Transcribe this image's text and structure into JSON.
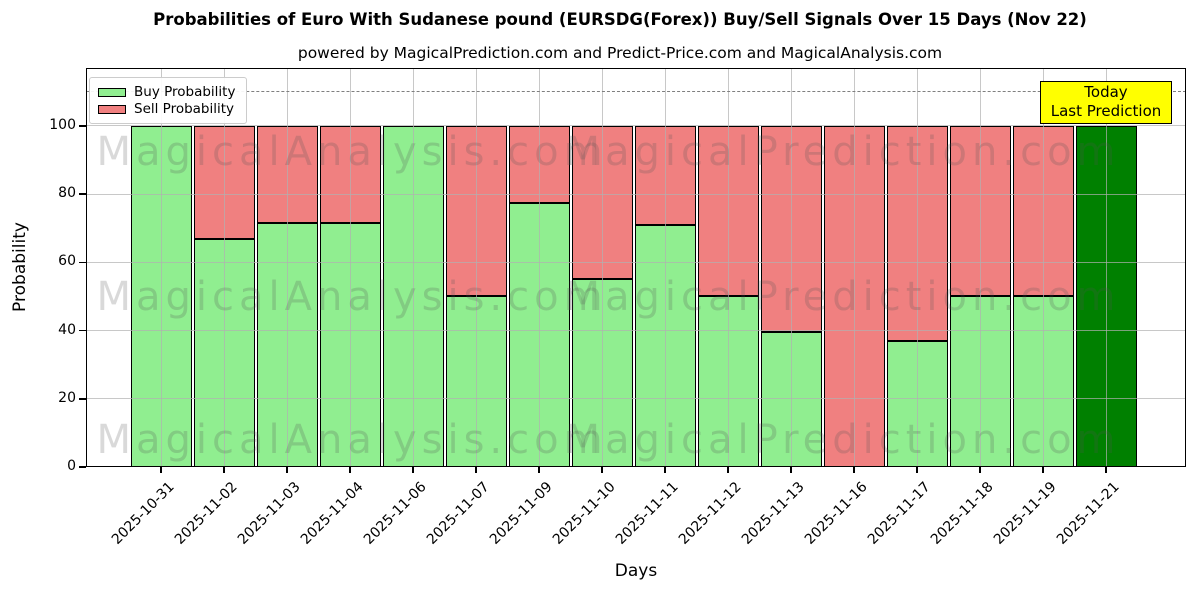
{
  "title": "Probabilities of Euro With Sudanese pound (EURSDG(Forex)) Buy/Sell Signals Over 15 Days (Nov 22)",
  "subtitle": "powered by MagicalPrediction.com and Predict-Price.com and MagicalAnalysis.com",
  "annotation": {
    "line1": "Today",
    "line2": "Last Prediction",
    "bg_color": "#ffff00"
  },
  "watermarks": {
    "left": "MagicalAnalysis.com",
    "right": "MagicalPrediction.com"
  },
  "chart_data": {
    "type": "bar",
    "stacked": true,
    "categories": [
      "2025-10-31",
      "2025-11-02",
      "2025-11-03",
      "2025-11-04",
      "2025-11-06",
      "2025-11-07",
      "2025-11-09",
      "2025-11-10",
      "2025-11-11",
      "2025-11-12",
      "2025-11-13",
      "2025-11-16",
      "2025-11-17",
      "2025-11-18",
      "2025-11-19",
      "2025-11-21"
    ],
    "series": [
      {
        "name": "Buy Probability",
        "color": "#90ee90",
        "values": [
          100,
          67,
          71.5,
          71.5,
          100,
          50,
          77.5,
          55,
          71,
          50,
          39.5,
          0,
          37,
          50,
          50,
          100
        ]
      },
      {
        "name": "Sell Probability",
        "color": "#f08080",
        "values": [
          0,
          33,
          28.5,
          28.5,
          0,
          50,
          22.5,
          45,
          29,
          50,
          60.5,
          100,
          63,
          50,
          50,
          0
        ]
      }
    ],
    "today_bar": {
      "index": 15,
      "color": "#008000"
    },
    "xlabel": "Days",
    "ylabel": "Probability",
    "yticks": [
      0,
      20,
      40,
      60,
      80,
      100
    ],
    "ylim": [
      0,
      117
    ],
    "dashed_line_y": 110,
    "grid": true,
    "legend_position": "upper left",
    "colors": {
      "axis": "#000000",
      "grid": "#b0b0b0",
      "dashed_line": "#7f7f7f",
      "bar_edge": "#000000"
    }
  }
}
